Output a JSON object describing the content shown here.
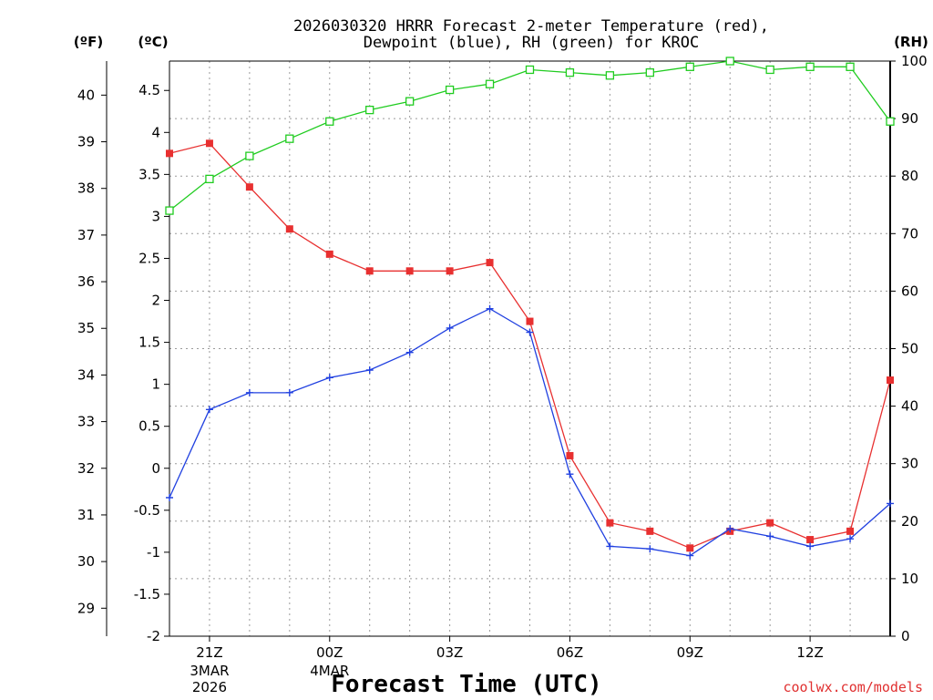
{
  "chart_data": {
    "type": "line",
    "title_line1": "2026030320 HRRR Forecast 2-meter Temperature (red),",
    "title_line2": "Dewpoint (blue), RH (green) for KROC",
    "xlabel": "Forecast Time (UTC)",
    "unit_f": "(ºF)",
    "unit_c": "(ºC)",
    "unit_rh": "(RH)",
    "credit": "coolwx.com/models",
    "credit_color": "#e03030",
    "x_count": 19,
    "x_ticks": [
      {
        "index": 1,
        "label": "21Z",
        "sub1": "3MAR",
        "sub2": "2026"
      },
      {
        "index": 4,
        "label": "00Z",
        "sub1": "4MAR",
        "sub2": ""
      },
      {
        "index": 7,
        "label": "03Z",
        "sub1": "",
        "sub2": ""
      },
      {
        "index": 10,
        "label": "06Z",
        "sub1": "",
        "sub2": ""
      },
      {
        "index": 13,
        "label": "09Z",
        "sub1": "",
        "sub2": ""
      },
      {
        "index": 16,
        "label": "12Z",
        "sub1": "",
        "sub2": ""
      }
    ],
    "ylim_c": [
      -2,
      4.85
    ],
    "yticks_c": [
      "-2",
      "-1.5",
      "-1",
      "-0.5",
      "0",
      "0.5",
      "1",
      "1.5",
      "2",
      "2.5",
      "3",
      "3.5",
      "4",
      "4.5"
    ],
    "yticks_f": [
      "29",
      "30",
      "31",
      "32",
      "33",
      "34",
      "35",
      "36",
      "37",
      "38",
      "39",
      "40"
    ],
    "ylim_rh": [
      0,
      100
    ],
    "yticks_rh": [
      "0",
      "10",
      "20",
      "30",
      "40",
      "50",
      "60",
      "70",
      "80",
      "90",
      "100"
    ],
    "series": [
      {
        "name": "Temperature",
        "axis": "c",
        "color": "#e83030",
        "marker": "filled-square",
        "values": [
          3.75,
          3.87,
          3.35,
          2.85,
          2.55,
          2.35,
          2.35,
          2.35,
          2.45,
          1.75,
          0.15,
          -0.65,
          -0.75,
          -0.95,
          -0.75,
          -0.65,
          -0.85,
          -0.75,
          1.05
        ]
      },
      {
        "name": "Dewpoint",
        "axis": "c",
        "color": "#2040e0",
        "marker": "plus",
        "values": [
          -0.35,
          0.7,
          0.9,
          0.9,
          1.08,
          1.17,
          1.38,
          1.67,
          1.9,
          1.62,
          -0.07,
          -0.93,
          -0.96,
          -1.04,
          -0.72,
          -0.81,
          -0.93,
          -0.84,
          -0.42
        ]
      },
      {
        "name": "RH",
        "axis": "rh",
        "color": "#20cc20",
        "marker": "open-square",
        "values": [
          74,
          79.5,
          83.5,
          86.5,
          89.5,
          91.5,
          93,
          95,
          96,
          98.5,
          98,
          97.5,
          98,
          99,
          100,
          98.5,
          99,
          99,
          89.5
        ]
      }
    ]
  }
}
